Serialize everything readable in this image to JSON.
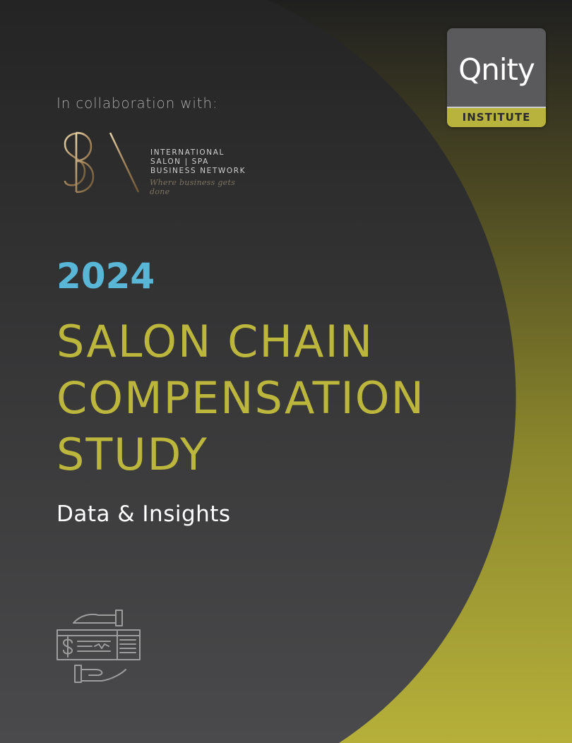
{
  "collab": {
    "label": "In collaboration with:"
  },
  "isbn": {
    "lines": [
      "INTERNATIONAL",
      "SALON | SPA",
      "BUSINESS NETWORK"
    ],
    "tagline": "Where business gets done"
  },
  "qnity": {
    "wordmark": "Qnity",
    "sub": "INSTITUTE"
  },
  "cover": {
    "year": "2024",
    "title_lines": [
      "SALON CHAIN",
      "COMPENSATION",
      "STUDY"
    ],
    "subtitle": "Data & Insights"
  },
  "colors": {
    "background": "#2a2a2a",
    "accent_olive": "#bcb63c",
    "year_blue": "#59b6d6",
    "text_white": "#ffffff"
  },
  "icons": {
    "logo": "isbn-logo",
    "badge": "qnity-logo",
    "pay": "hands-check-icon"
  }
}
